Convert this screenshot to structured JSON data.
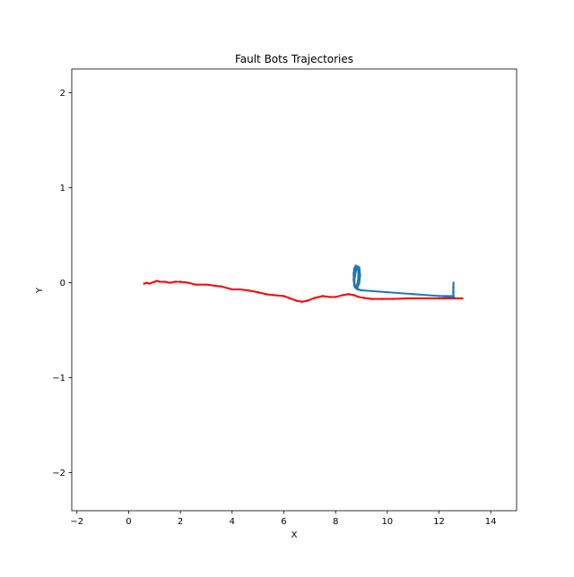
{
  "chart_data": {
    "type": "line",
    "title": "Fault Bots Trajectories",
    "xlabel": "X",
    "ylabel": "Y",
    "xlim": [
      -2.2,
      15.0
    ],
    "ylim": [
      -2.4,
      2.25
    ],
    "x_ticks": [
      -2,
      0,
      2,
      4,
      6,
      8,
      10,
      12,
      14
    ],
    "x_tick_labels": [
      "−2",
      "0",
      "2",
      "4",
      "6",
      "8",
      "10",
      "12",
      "14"
    ],
    "y_ticks": [
      -2,
      -1,
      0,
      1,
      2
    ],
    "y_tick_labels": [
      "−2",
      "−1",
      "0",
      "1",
      "2"
    ],
    "grid": false,
    "series": [
      {
        "color": "#1f77b4",
        "x": [
          12.55,
          12.55,
          12.55,
          12.56,
          12.56,
          12.0,
          11.0,
          10.0,
          9.0,
          8.85,
          8.75,
          8.72,
          8.72,
          8.75,
          8.82,
          8.87,
          8.88,
          8.87,
          8.82,
          8.78,
          8.72,
          8.7,
          8.7,
          8.72,
          8.78,
          8.85,
          8.9,
          8.9,
          8.86,
          8.8,
          8.75,
          8.73,
          8.78,
          8.85,
          8.92,
          8.95,
          8.92,
          8.85,
          8.8,
          9.0,
          10.0,
          11.0,
          12.0,
          12.5,
          12.6
        ],
        "y": [
          -0.16,
          -0.1,
          -0.05,
          0.0,
          -0.14,
          -0.14,
          -0.12,
          -0.1,
          -0.08,
          -0.07,
          -0.05,
          0.0,
          0.08,
          0.14,
          0.17,
          0.14,
          0.08,
          0.02,
          -0.03,
          -0.05,
          -0.03,
          0.03,
          0.1,
          0.15,
          0.18,
          0.17,
          0.1,
          0.03,
          -0.03,
          -0.06,
          -0.04,
          0.02,
          0.12,
          0.17,
          0.16,
          0.08,
          0.0,
          -0.05,
          -0.06,
          -0.08,
          -0.1,
          -0.12,
          -0.14,
          -0.15,
          -0.16
        ]
      },
      {
        "color": "#ff0000",
        "x": [
          0.6,
          0.7,
          0.8,
          1.0,
          1.1,
          1.2,
          1.4,
          1.6,
          1.8,
          2.0,
          2.3,
          2.6,
          3.0,
          3.3,
          3.6,
          4.0,
          4.3,
          4.6,
          5.0,
          5.3,
          5.6,
          6.0,
          6.2,
          6.5,
          6.7,
          6.9,
          7.2,
          7.5,
          7.8,
          8.0,
          8.3,
          8.5,
          8.7,
          8.9,
          9.1,
          9.4,
          9.8,
          10.2,
          10.8,
          11.5,
          12.2,
          12.9
        ],
        "y": [
          -0.01,
          0.0,
          -0.01,
          0.01,
          0.02,
          0.01,
          0.01,
          0.0,
          0.01,
          0.01,
          0.0,
          -0.02,
          -0.02,
          -0.03,
          -0.04,
          -0.07,
          -0.07,
          -0.08,
          -0.1,
          -0.12,
          -0.13,
          -0.14,
          -0.16,
          -0.19,
          -0.2,
          -0.19,
          -0.16,
          -0.14,
          -0.15,
          -0.15,
          -0.13,
          -0.12,
          -0.13,
          -0.15,
          -0.16,
          -0.17,
          -0.17,
          -0.17,
          -0.165,
          -0.165,
          -0.165,
          -0.165
        ]
      }
    ]
  }
}
